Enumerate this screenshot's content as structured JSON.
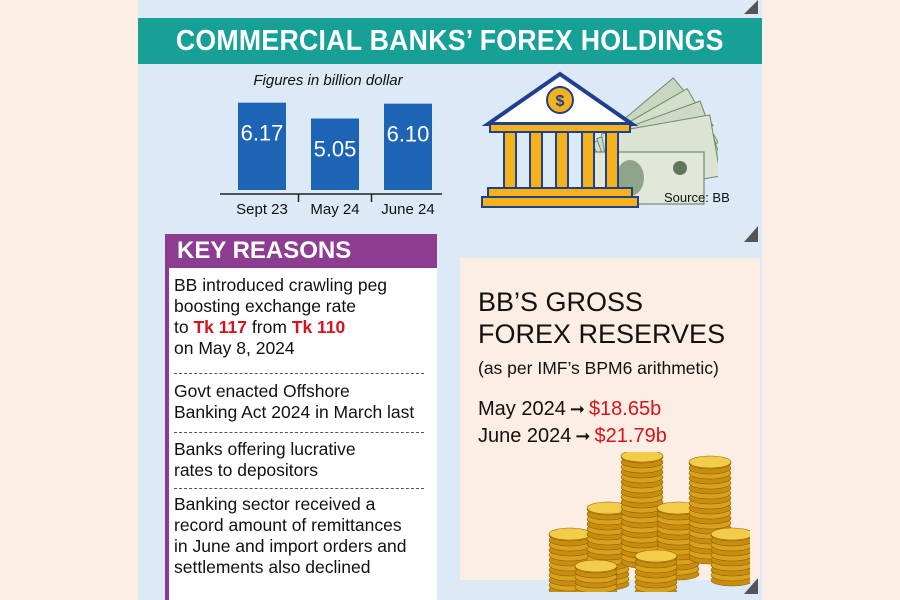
{
  "title": "COMMERCIAL BANKS’ FOREX HOLDINGS",
  "figures_note": "Figures in billion dollar",
  "source": "Source: BB",
  "chart_data": {
    "type": "bar",
    "categories": [
      "Sept 23",
      "May 24",
      "June 24"
    ],
    "values": [
      6.17,
      5.05,
      6.1
    ],
    "value_labels": [
      "6.17",
      "5.05",
      "6.10"
    ],
    "ylim": [
      0,
      6.5
    ],
    "bar_color": "#1e64b4"
  },
  "key_reasons": {
    "header": "KEY REASONS",
    "r1_line1": "BB introduced crawling peg",
    "r1_line2": "boosting exchange rate",
    "r1_to": "to",
    "r1_tk117": "Tk 117",
    "r1_from": "from",
    "r1_tk110": "Tk 110",
    "r1_line4": "on May 8, 2024",
    "r2_line1": "Govt enacted Offshore",
    "r2_line2": "Banking Act 2024 in March last",
    "r3_line1": "Banks offering lucrative",
    "r3_line2": "rates to depositors",
    "r4_line1": "Banking sector received a",
    "r4_line2": "record amount of remittances",
    "r4_line3": "in June and import orders and",
    "r4_line4": "settlements also declined"
  },
  "reserves": {
    "title_line1": "BB’S GROSS",
    "title_line2": "FOREX RESERVES",
    "subtitle": "(as per IMF’s BPM6 arithmetic)",
    "rows": [
      {
        "label": "May 2024",
        "value": "$18.65b"
      },
      {
        "label": "June 2024",
        "value": "$21.79b"
      }
    ]
  },
  "colors": {
    "teal": "#17a096",
    "purple": "#8c3d92",
    "red": "#d8121f",
    "panel": "#dbeaf6"
  }
}
